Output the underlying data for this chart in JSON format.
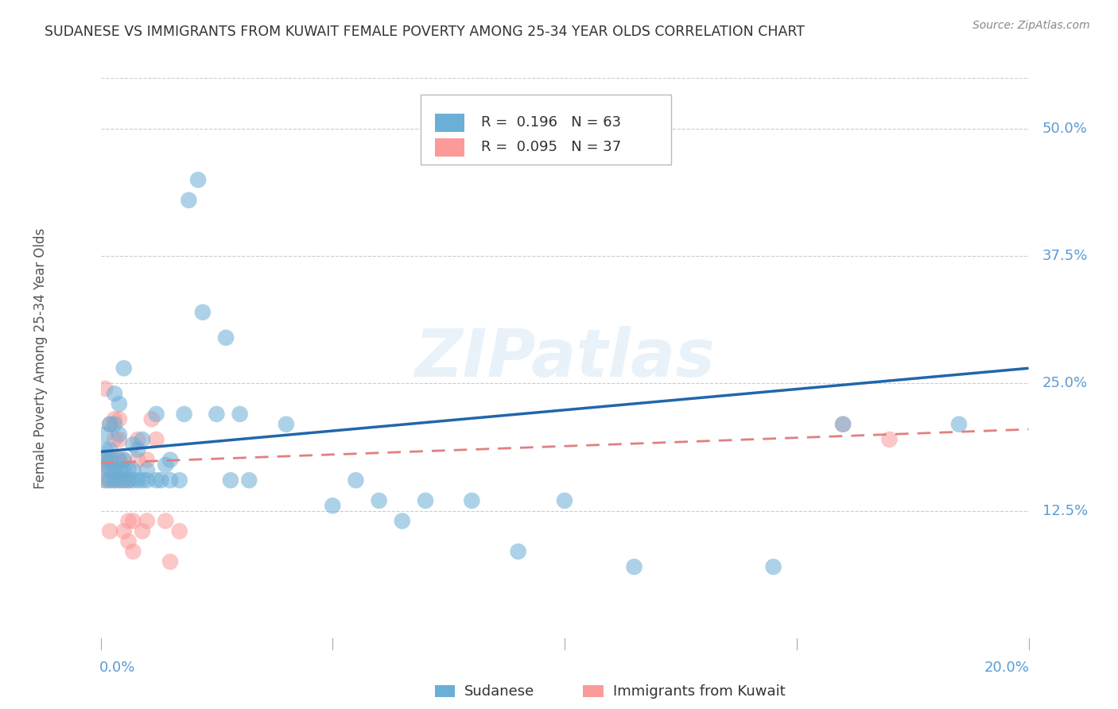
{
  "title": "SUDANESE VS IMMIGRANTS FROM KUWAIT FEMALE POVERTY AMONG 25-34 YEAR OLDS CORRELATION CHART",
  "source": "Source: ZipAtlas.com",
  "ylabel": "Female Poverty Among 25-34 Year Olds",
  "xlim": [
    0.0,
    0.2
  ],
  "ylim": [
    0.0,
    0.55
  ],
  "xticks": [
    0.0,
    0.05,
    0.1,
    0.15,
    0.2
  ],
  "yticks_right": [
    0.0,
    0.125,
    0.25,
    0.375,
    0.5
  ],
  "yticklabels_right": [
    "",
    "12.5%",
    "25.0%",
    "37.5%",
    "50.0%"
  ],
  "grid_color": "#cccccc",
  "background_color": "#ffffff",
  "watermark": "ZIPatlas",
  "legend_R1": "0.196",
  "legend_N1": "63",
  "legend_R2": "0.095",
  "legend_N2": "37",
  "color_sudanese": "#6baed6",
  "color_kuwait": "#fb9a99",
  "trendline_sudanese_color": "#2166ac",
  "trendline_kuwait_color": "#e08080",
  "sudanese_x": [
    0.001,
    0.001,
    0.001,
    0.001,
    0.001,
    0.002,
    0.002,
    0.002,
    0.002,
    0.002,
    0.003,
    0.003,
    0.003,
    0.003,
    0.004,
    0.004,
    0.004,
    0.004,
    0.004,
    0.005,
    0.005,
    0.005,
    0.005,
    0.006,
    0.006,
    0.007,
    0.007,
    0.007,
    0.008,
    0.008,
    0.009,
    0.009,
    0.01,
    0.01,
    0.012,
    0.012,
    0.013,
    0.014,
    0.015,
    0.015,
    0.017,
    0.018,
    0.019,
    0.021,
    0.022,
    0.025,
    0.027,
    0.028,
    0.03,
    0.032,
    0.04,
    0.05,
    0.055,
    0.06,
    0.065,
    0.07,
    0.08,
    0.09,
    0.1,
    0.115,
    0.145,
    0.16,
    0.185
  ],
  "sudanese_y": [
    0.155,
    0.17,
    0.175,
    0.185,
    0.2,
    0.155,
    0.165,
    0.175,
    0.185,
    0.21,
    0.155,
    0.165,
    0.21,
    0.24,
    0.155,
    0.165,
    0.175,
    0.2,
    0.23,
    0.155,
    0.165,
    0.175,
    0.265,
    0.155,
    0.165,
    0.155,
    0.165,
    0.19,
    0.155,
    0.185,
    0.155,
    0.195,
    0.155,
    0.165,
    0.155,
    0.22,
    0.155,
    0.17,
    0.155,
    0.175,
    0.155,
    0.22,
    0.43,
    0.45,
    0.32,
    0.22,
    0.295,
    0.155,
    0.22,
    0.155,
    0.21,
    0.13,
    0.155,
    0.135,
    0.115,
    0.135,
    0.135,
    0.085,
    0.135,
    0.07,
    0.07,
    0.21,
    0.21
  ],
  "kuwait_x": [
    0.001,
    0.001,
    0.001,
    0.001,
    0.002,
    0.002,
    0.002,
    0.002,
    0.003,
    0.003,
    0.003,
    0.003,
    0.003,
    0.004,
    0.004,
    0.004,
    0.004,
    0.005,
    0.005,
    0.005,
    0.006,
    0.006,
    0.006,
    0.007,
    0.007,
    0.008,
    0.008,
    0.009,
    0.01,
    0.01,
    0.011,
    0.012,
    0.014,
    0.015,
    0.017,
    0.16,
    0.17
  ],
  "kuwait_y": [
    0.155,
    0.165,
    0.175,
    0.245,
    0.105,
    0.155,
    0.175,
    0.21,
    0.155,
    0.165,
    0.175,
    0.195,
    0.215,
    0.155,
    0.175,
    0.195,
    0.215,
    0.105,
    0.155,
    0.175,
    0.095,
    0.115,
    0.155,
    0.085,
    0.115,
    0.175,
    0.195,
    0.105,
    0.115,
    0.175,
    0.215,
    0.195,
    0.115,
    0.075,
    0.105,
    0.21,
    0.195
  ],
  "trend_sud_x0": 0.0,
  "trend_sud_y0": 0.183,
  "trend_sud_x1": 0.2,
  "trend_sud_y1": 0.265,
  "trend_kuw_x0": 0.0,
  "trend_kuw_y0": 0.172,
  "trend_kuw_x1": 0.2,
  "trend_kuw_y1": 0.205
}
